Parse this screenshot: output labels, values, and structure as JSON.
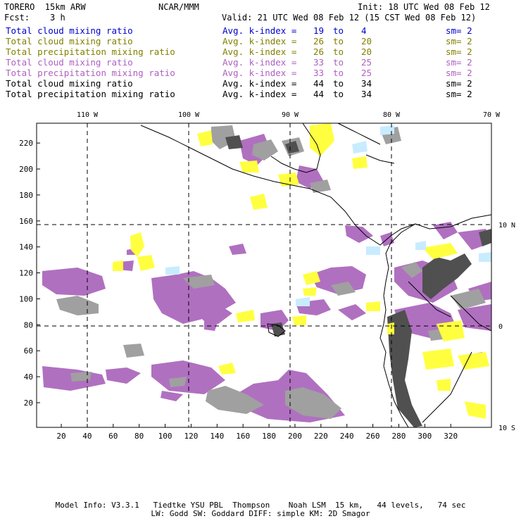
{
  "header": {
    "model": "TORERO  15km ARW",
    "org": "NCAR/MMM",
    "init": "Init: 18 UTC Wed 08 Feb 12",
    "fcst": "Fcst:    3 h",
    "valid": "Valid: 21 UTC Wed 08 Feb 12 (15 CST Wed 08 Feb 12)"
  },
  "legend": [
    {
      "field": "Total cloud mixing ratio",
      "kindex": "Avg. k-index =",
      "from": "19",
      "to_word": "to",
      "to": "4",
      "sm": "sm= 2",
      "color": "#0000cc"
    },
    {
      "field": "Total cloud mixing ratio",
      "kindex": "Avg. k-index =",
      "from": "26",
      "to_word": "to",
      "to": "20",
      "sm": "sm= 2",
      "color": "#808000"
    },
    {
      "field": "Total precipitation mixing ratio",
      "kindex": "Avg. k-index =",
      "from": "26",
      "to_word": "to",
      "to": "20",
      "sm": "sm= 2",
      "color": "#808000"
    },
    {
      "field": "Total cloud mixing ratio",
      "kindex": "Avg. k-index =",
      "from": "33",
      "to_word": "to",
      "to": "25",
      "sm": "sm= 2",
      "color": "#b060c0"
    },
    {
      "field": "Total precipitation mixing ratio",
      "kindex": "Avg. k-index =",
      "from": "33",
      "to_word": "to",
      "to": "25",
      "sm": "sm= 2",
      "color": "#b060c0"
    },
    {
      "field": "Total cloud mixing ratio",
      "kindex": "Avg. k-index =",
      "from": "44",
      "to_word": "to",
      "to": "34",
      "sm": "sm= 2",
      "color": "#000000"
    },
    {
      "field": "Total precipitation mixing ratio",
      "kindex": "Avg. k-index =",
      "from": "44",
      "to_word": "to",
      "to": "34",
      "sm": "sm= 2",
      "color": "#000000"
    }
  ],
  "map": {
    "x_ticks": [
      "20",
      "40",
      "60",
      "80",
      "100",
      "120",
      "140",
      "160",
      "180",
      "200",
      "220",
      "240",
      "260",
      "280",
      "300",
      "320"
    ],
    "y_ticks": [
      "20",
      "40",
      "60",
      "80",
      "100",
      "120",
      "140",
      "160",
      "180",
      "200",
      "220"
    ],
    "lon_labels": [
      "110 W",
      "100 W",
      "90 W",
      "80 W",
      "70 W"
    ],
    "lat_labels": [
      "10 N",
      "0",
      "10 S"
    ],
    "colors": {
      "frame": "#000000",
      "gray": "#a0a0a0",
      "purple": "#b070c0",
      "yellow": "#ffff40",
      "cyan": "#c8ecff",
      "dark": "#505050"
    }
  },
  "footer": {
    "line1": "Model Info: V3.3.1   Tiedtke YSU PBL  Thompson    Noah LSM  15 km,   44 levels,   74 sec",
    "line2": "LW: Godd SW: Goddard DIFF: simple KM: 2D Smagor"
  }
}
